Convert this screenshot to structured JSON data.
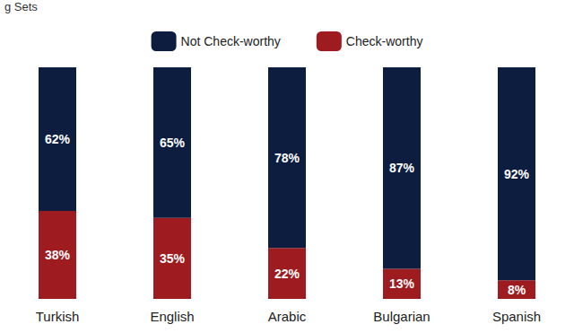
{
  "chart_data": {
    "type": "bar",
    "title": "g Sets",
    "stacked": true,
    "legend": "top",
    "data_labels": true,
    "tick_labels": "x",
    "grid": false,
    "categories": [
      "Turkish",
      "English",
      "Arabic",
      "Bulgarian",
      "Spanish"
    ],
    "ylim": [
      0,
      100
    ],
    "series": [
      {
        "name": "Not Check-worthy",
        "color": "#0c1d3f",
        "values": [
          62,
          65,
          78,
          87,
          92
        ],
        "value_labels": [
          "62%",
          "65%",
          "78%",
          "87%",
          "92%"
        ]
      },
      {
        "name": "Check-worthy",
        "color": "#9e1b20",
        "values": [
          38,
          35,
          22,
          13,
          8
        ],
        "value_labels": [
          "38%",
          "35%",
          "22%",
          "13%",
          "8%"
        ]
      }
    ]
  }
}
